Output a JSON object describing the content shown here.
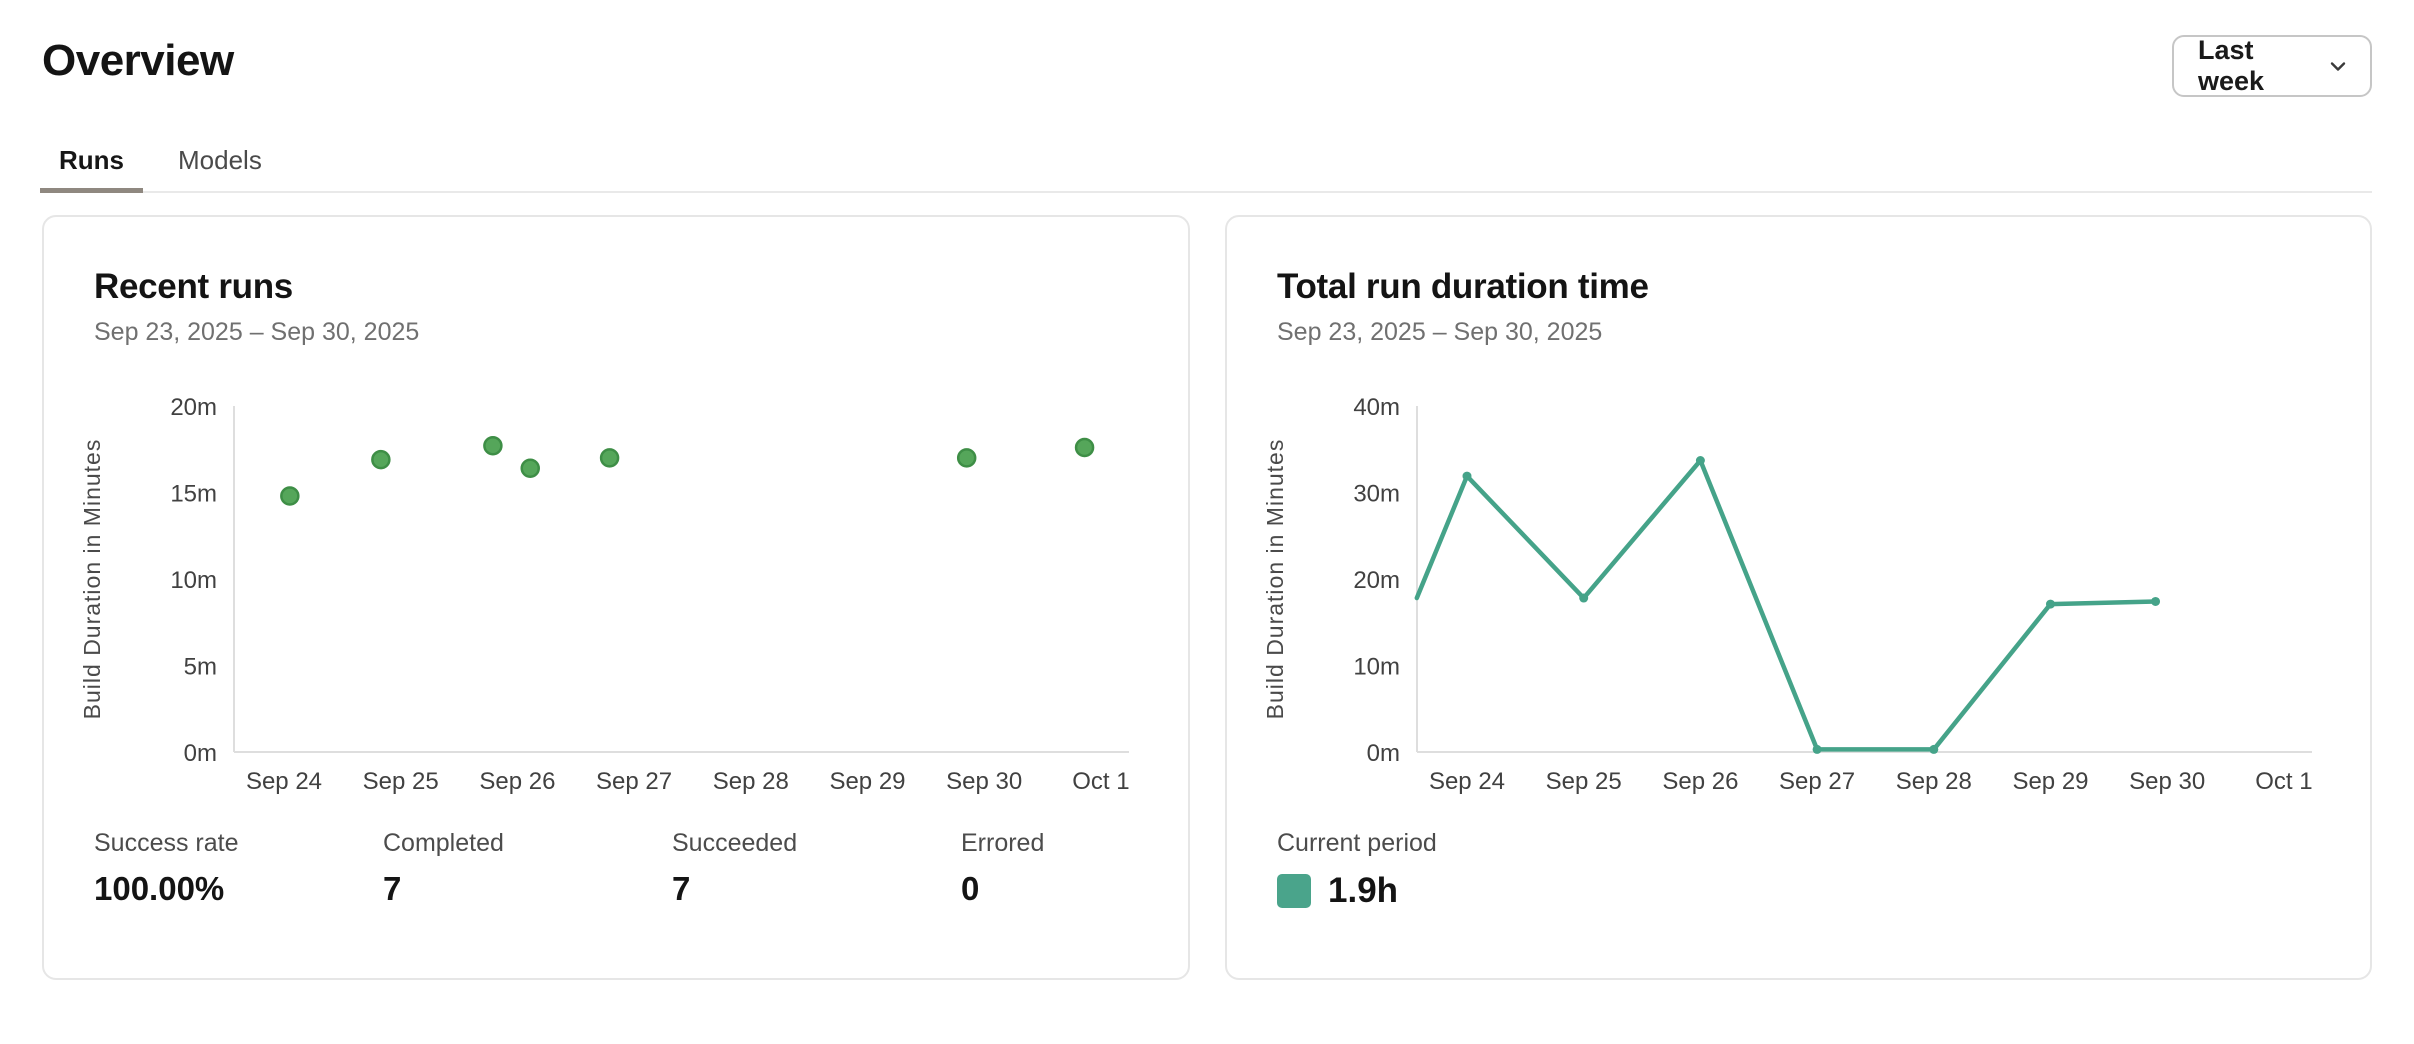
{
  "page": {
    "title": "Overview"
  },
  "period_selector": {
    "label": "Last week",
    "icon": "chevron-down-icon"
  },
  "tabs": [
    {
      "label": "Runs",
      "active": true
    },
    {
      "label": "Models",
      "active": false
    }
  ],
  "cards": {
    "recent_runs": {
      "title": "Recent runs",
      "date_range": "Sep 23, 2025 – Sep 30, 2025",
      "stats": [
        {
          "label": "Success rate",
          "value": "100.00%"
        },
        {
          "label": "Completed",
          "value": "7"
        },
        {
          "label": "Succeeded",
          "value": "7"
        },
        {
          "label": "Errored",
          "value": "0"
        }
      ]
    },
    "total_run_duration": {
      "title": "Total run duration time",
      "date_range": "Sep 23, 2025 – Sep 30, 2025",
      "legend": {
        "label": "Current period",
        "value": "1.9h",
        "swatch_color": "#4aa48b"
      }
    }
  },
  "chart_data": [
    {
      "type": "scatter",
      "title": "Recent runs",
      "ylabel": "Build Duration in Minutes",
      "xlabel": "",
      "x_unit": "days after Sep 24",
      "x_ticks": [
        "Sep 24",
        "Sep 25",
        "Sep 26",
        "Sep 27",
        "Sep 28",
        "Sep 29",
        "Sep 30",
        "Oct 1"
      ],
      "y_ticks": [
        {
          "v": 0,
          "label": "0m"
        },
        {
          "v": 5,
          "label": "5m"
        },
        {
          "v": 10,
          "label": "10m"
        },
        {
          "v": 15,
          "label": "15m"
        },
        {
          "v": 20,
          "label": "20m"
        }
      ],
      "ylim": [
        0,
        20
      ],
      "grid": false,
      "points": [
        {
          "x": 0.05,
          "y": 14.8
        },
        {
          "x": 0.83,
          "y": 16.9
        },
        {
          "x": 1.79,
          "y": 17.7
        },
        {
          "x": 2.11,
          "y": 16.4
        },
        {
          "x": 2.79,
          "y": 17.0
        },
        {
          "x": 5.85,
          "y": 17.0
        },
        {
          "x": 6.86,
          "y": 17.6
        }
      ],
      "point_color": "#55a65a",
      "point_border_color": "#3e8e46"
    },
    {
      "type": "line",
      "title": "Total run duration time",
      "ylabel": "Build Duration in Minutes",
      "xlabel": "",
      "x_unit": "days after Sep 24",
      "x_ticks": [
        "Sep 24",
        "Sep 25",
        "Sep 26",
        "Sep 27",
        "Sep 28",
        "Sep 29",
        "Sep 30",
        "Oct 1"
      ],
      "y_ticks": [
        {
          "v": 0,
          "label": "0m"
        },
        {
          "v": 10,
          "label": "10m"
        },
        {
          "v": 20,
          "label": "20m"
        },
        {
          "v": 30,
          "label": "30m"
        },
        {
          "v": 40,
          "label": "40m"
        }
      ],
      "ylim": [
        0,
        40
      ],
      "grid": false,
      "legend_position": "bottom-left",
      "points": [
        {
          "x": -0.43,
          "y": 17.8,
          "marker": false
        },
        {
          "x": 0,
          "y": 31.9
        },
        {
          "x": 1,
          "y": 17.8
        },
        {
          "x": 2,
          "y": 33.7
        },
        {
          "x": 3,
          "y": 0.3
        },
        {
          "x": 4,
          "y": 0.3
        },
        {
          "x": 5,
          "y": 17.1
        },
        {
          "x": 5.9,
          "y": 17.4
        }
      ],
      "line_color": "#45a389"
    }
  ]
}
